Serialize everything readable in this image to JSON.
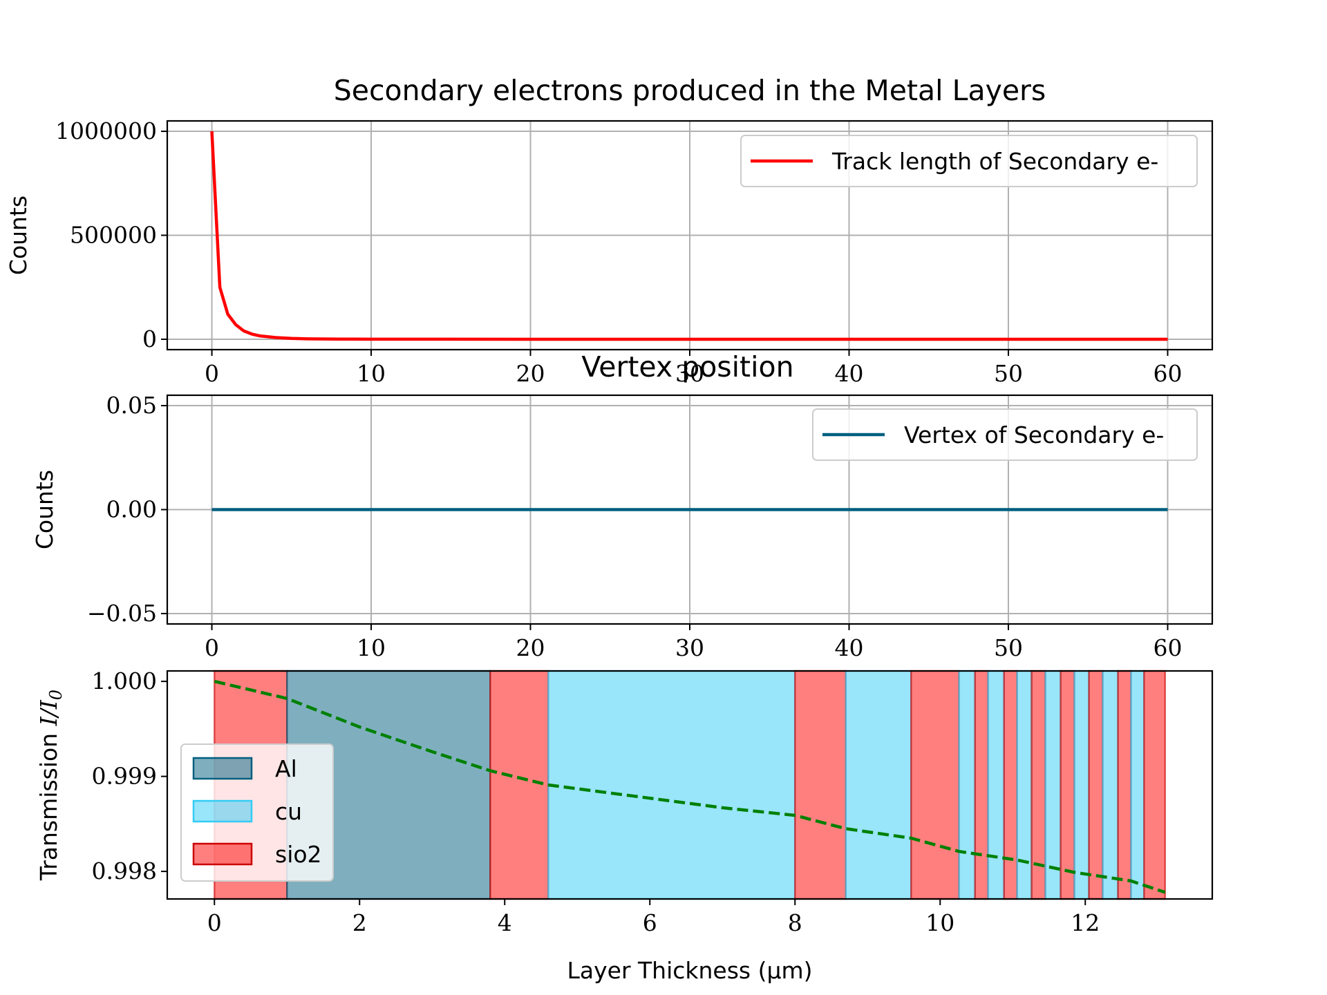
{
  "chart_data": [
    {
      "type": "line",
      "title": "Secondary electrons produced in the Metal Layers",
      "xlabel": "",
      "ylabel": "Counts",
      "xlim": [
        -2.8,
        62.8
      ],
      "ylim": [
        -50000,
        1050000
      ],
      "xticks": [
        "0",
        "10",
        "20",
        "30",
        "40",
        "50",
        "60"
      ],
      "yticks": [
        "0",
        "500000",
        "1000000"
      ],
      "grid": true,
      "legend_position": "top-right",
      "series": [
        {
          "name": "Track length of Secondary e-",
          "color": "#ff0000",
          "x": [
            0,
            0.5,
            1,
            1.5,
            2,
            2.5,
            3,
            4,
            5,
            6,
            8,
            10,
            15,
            20,
            30,
            40,
            50,
            60
          ],
          "y": [
            1000000,
            250000,
            120000,
            70000,
            40000,
            25000,
            16000,
            8000,
            4000,
            2000,
            800,
            300,
            100,
            0,
            0,
            0,
            0,
            0
          ]
        }
      ]
    },
    {
      "type": "line",
      "title": "Vertex position",
      "xlabel": "",
      "ylabel": "Counts",
      "xlim": [
        -2.8,
        62.8
      ],
      "ylim": [
        -0.055,
        0.055
      ],
      "xticks": [
        "0",
        "10",
        "20",
        "30",
        "40",
        "50",
        "60"
      ],
      "yticks": [
        "−0.05",
        "0.00",
        "0.05"
      ],
      "grid": true,
      "legend_position": "top-right",
      "series": [
        {
          "name": "Vertex of Secondary e-",
          "color": "#005f7f",
          "x": [
            0,
            60
          ],
          "y": [
            0,
            0
          ]
        }
      ]
    },
    {
      "type": "area",
      "title": "",
      "xlabel": "Layer Thickness (μm)",
      "ylabel_text": "Transmission ",
      "ylabel_math": "I/I",
      "ylabel_sub": "0",
      "xlim": [
        -0.65,
        13.75
      ],
      "ylim": [
        0.99771,
        1.00011
      ],
      "xticks": [
        "0",
        "2",
        "4",
        "6",
        "8",
        "10",
        "12"
      ],
      "yticks": [
        "0.998",
        "0.999",
        "1.000"
      ],
      "grid": false,
      "legend_position": "center-left",
      "legend": [
        {
          "label": "Al",
          "material": "al"
        },
        {
          "label": "cu",
          "material": "cu"
        },
        {
          "label": "sio2",
          "material": "sio2"
        }
      ],
      "material_colors": {
        "al": {
          "fill": "#005f7f",
          "alpha": 0.5,
          "edge": "#005f7f"
        },
        "cu": {
          "fill": "#33ccf5",
          "alpha": 0.5,
          "edge": "#33ccf5"
        },
        "sio2": {
          "fill": "#ff0000",
          "alpha": 0.5,
          "edge": "#cc0000"
        }
      },
      "layers": [
        {
          "material": "sio2",
          "start": 0.0,
          "end": 1.0
        },
        {
          "material": "al",
          "start": 1.0,
          "end": 3.8
        },
        {
          "material": "sio2",
          "start": 3.8,
          "end": 4.6
        },
        {
          "material": "cu",
          "start": 4.6,
          "end": 8.0
        },
        {
          "material": "sio2",
          "start": 8.0,
          "end": 8.7
        },
        {
          "material": "cu",
          "start": 8.7,
          "end": 9.6
        },
        {
          "material": "sio2",
          "start": 9.6,
          "end": 10.26
        },
        {
          "material": "cu",
          "start": 10.26,
          "end": 10.48
        },
        {
          "material": "sio2",
          "start": 10.48,
          "end": 10.66
        },
        {
          "material": "cu",
          "start": 10.66,
          "end": 10.88
        },
        {
          "material": "sio2",
          "start": 10.88,
          "end": 11.06
        },
        {
          "material": "cu",
          "start": 11.06,
          "end": 11.26
        },
        {
          "material": "sio2",
          "start": 11.26,
          "end": 11.45
        },
        {
          "material": "cu",
          "start": 11.45,
          "end": 11.66
        },
        {
          "material": "sio2",
          "start": 11.66,
          "end": 11.85
        },
        {
          "material": "cu",
          "start": 11.85,
          "end": 12.05
        },
        {
          "material": "sio2",
          "start": 12.05,
          "end": 12.24
        },
        {
          "material": "cu",
          "start": 12.24,
          "end": 12.45
        },
        {
          "material": "sio2",
          "start": 12.45,
          "end": 12.63
        },
        {
          "material": "cu",
          "start": 12.63,
          "end": 12.81
        },
        {
          "material": "sio2",
          "start": 12.81,
          "end": 13.1
        }
      ],
      "series": [
        {
          "color": "#008000",
          "style": "dashed",
          "x": [
            0,
            1,
            2,
            3,
            3.8,
            4.6,
            6,
            7,
            8,
            8.7,
            9.6,
            10.26,
            11.06,
            11.85,
            12.63,
            13.1
          ],
          "y": [
            1.0,
            0.99982,
            0.99952,
            0.99926,
            0.99906,
            0.99891,
            0.99877,
            0.99867,
            0.99859,
            0.99845,
            0.99835,
            0.99821,
            0.99812,
            0.99799,
            0.9979,
            0.99778
          ]
        }
      ]
    }
  ]
}
